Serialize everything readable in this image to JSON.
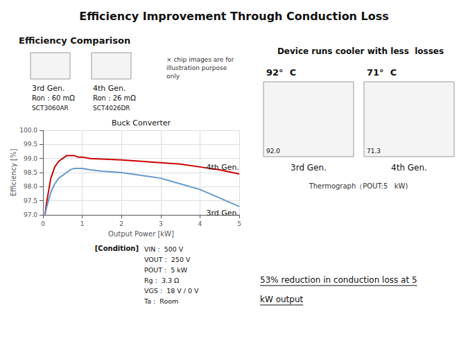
{
  "chart_data": {
    "type": "line",
    "title": "Efficiency Improvement Through Conduction Loss",
    "subtitle": "Efficiency Comparison",
    "graph_title": "Buck Converter",
    "xlabel": "Output Power [kW]",
    "ylabel": "Efficiency [%]",
    "x": [
      0.05,
      0.1,
      0.2,
      0.3,
      0.4,
      0.5,
      0.6,
      0.7,
      0.8,
      0.9,
      1.0,
      1.2,
      1.5,
      2.0,
      2.5,
      3.0,
      3.5,
      4.0,
      4.5,
      5.0
    ],
    "series": [
      {
        "name": "4th Gen.",
        "color": "#cc0000",
        "values": [
          97.0,
          97.5,
          98.3,
          98.7,
          98.9,
          99.0,
          99.1,
          99.1,
          99.1,
          99.05,
          99.05,
          99.0,
          98.98,
          98.95,
          98.9,
          98.85,
          98.8,
          98.7,
          98.6,
          98.45
        ]
      },
      {
        "name": "3rd Gen.",
        "color": "#6699cc",
        "values": [
          97.0,
          97.3,
          97.8,
          98.1,
          98.3,
          98.4,
          98.5,
          98.6,
          98.65,
          98.65,
          98.65,
          98.6,
          98.55,
          98.5,
          98.4,
          98.3,
          98.1,
          97.9,
          97.6,
          97.3
        ]
      }
    ],
    "xlim": [
      0,
      5
    ],
    "ylim": [
      97.0,
      100.0
    ],
    "xticks": [
      0,
      1,
      2,
      3,
      4,
      5
    ],
    "yticks": [
      {
        "value": 97.0,
        "label": "97.0"
      },
      97.5,
      {
        "value": 98.0,
        "label": "98.0"
      },
      98.5,
      {
        "value": 99.0,
        "label": "99.0"
      },
      99.5,
      {
        "value": 100.0,
        "label": "100.0"
      }
    ],
    "grid": true,
    "annotations": {
      "chip_labels": [
        {
          "generation": "3rd Gen.",
          "ron": "Ron : 60 mΩ",
          "part": "SCT3060AR"
        },
        {
          "generation": "4th Gen.",
          "ron": "Ron : 26 mΩ",
          "part": "SCT4026DR"
        }
      ],
      "chip_note": "× chip images are for\nillustration purpose\nonly",
      "condition_label": "[Condition]",
      "condition_text": "VIN :  500 V\nVOUT :  250 V\nPOUT :  5 kW\nRg :  3.3 Ω\nVGS :  18 V / 0 V\nTa :  Room",
      "thermograph_header": "Device runs cooler with less  losses",
      "thermographs": [
        {
          "temperature": "92°  C",
          "reading": "92.0",
          "generation": "3rd Gen."
        },
        {
          "temperature": "71°  C",
          "reading": "71.3",
          "generation": "4th Gen."
        }
      ],
      "thermograph_note": "Thermograph（POUT:5   kW)",
      "reduction_text": [
        "53% reduction in conduction loss at 5",
        "kW output"
      ]
    }
  }
}
